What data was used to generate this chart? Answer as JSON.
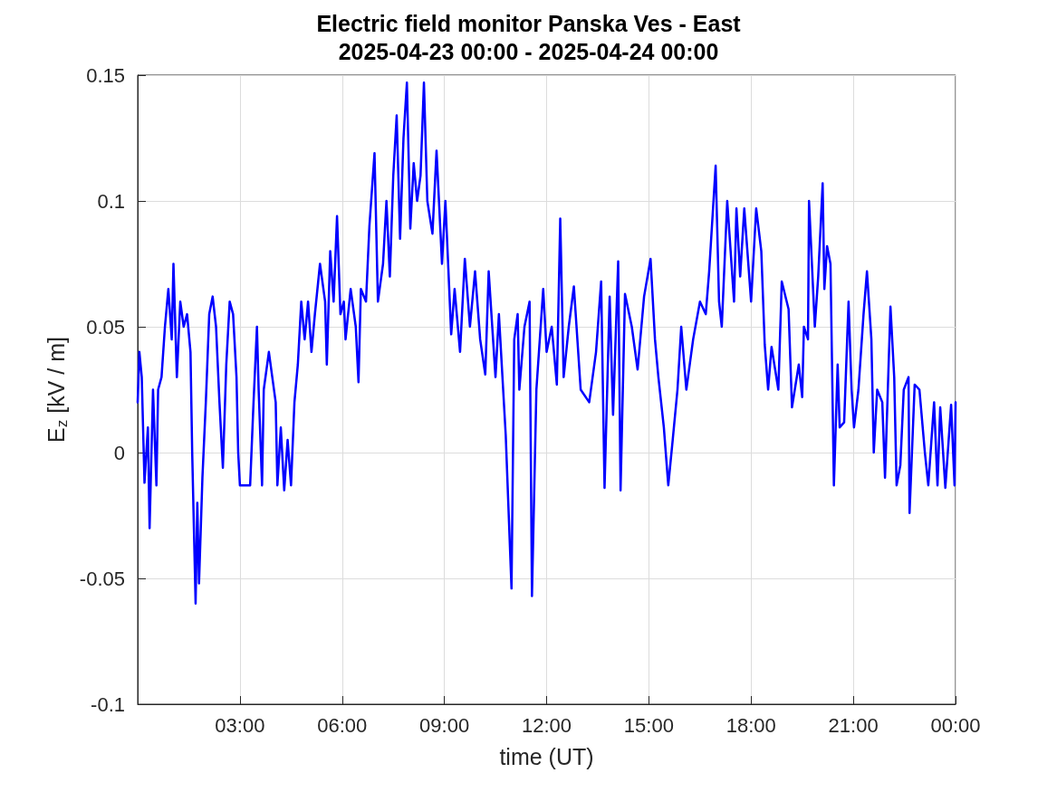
{
  "chart_data": {
    "type": "line",
    "title": "Electric field monitor Panska Ves - East",
    "subtitle": "2025-04-23 00:00 - 2025-04-24 00:00",
    "xlabel": "time (UT)",
    "ylabel": "E$_{z}$ [kV / m]",
    "xlim": [
      0,
      24
    ],
    "ylim": [
      -0.1,
      0.15
    ],
    "xticks": [
      {
        "value": 3,
        "label": "03:00"
      },
      {
        "value": 6,
        "label": "06:00"
      },
      {
        "value": 9,
        "label": "09:00"
      },
      {
        "value": 12,
        "label": "12:00"
      },
      {
        "value": 15,
        "label": "15:00"
      },
      {
        "value": 18,
        "label": "18:00"
      },
      {
        "value": 21,
        "label": "21:00"
      },
      {
        "value": 24,
        "label": "00:00"
      }
    ],
    "yticks": [
      -0.1,
      -0.05,
      0,
      0.05,
      0.1,
      0.15
    ],
    "grid": true,
    "marker": "none",
    "line_style": "solid",
    "series": [
      {
        "color": "#0000ff",
        "x": [
          0,
          0.05,
          0.12,
          0.2,
          0.3,
          0.35,
          0.45,
          0.55,
          0.6,
          0.7,
          0.8,
          0.9,
          1.0,
          1.05,
          1.15,
          1.25,
          1.35,
          1.45,
          1.55,
          1.6,
          1.65,
          1.7,
          1.75,
          1.8,
          1.9,
          2.0,
          2.1,
          2.2,
          2.3,
          2.4,
          2.5,
          2.6,
          2.7,
          2.8,
          2.9,
          2.95,
          3.0,
          3.3,
          3.4,
          3.5,
          3.55,
          3.65,
          3.7,
          3.85,
          3.95,
          4.05,
          4.1,
          4.2,
          4.3,
          4.4,
          4.5,
          4.6,
          4.7,
          4.8,
          4.9,
          5.0,
          5.1,
          5.2,
          5.35,
          5.5,
          5.55,
          5.65,
          5.75,
          5.85,
          5.95,
          6.05,
          6.1,
          6.25,
          6.4,
          6.48,
          6.55,
          6.7,
          6.8,
          6.95,
          7.05,
          7.2,
          7.3,
          7.4,
          7.5,
          7.6,
          7.7,
          7.8,
          7.9,
          8.0,
          8.1,
          8.2,
          8.3,
          8.4,
          8.5,
          8.65,
          8.77,
          8.93,
          9.03,
          9.2,
          9.3,
          9.46,
          9.6,
          9.75,
          9.9,
          10.05,
          10.2,
          10.3,
          10.5,
          10.6,
          10.8,
          10.97,
          11.05,
          11.15,
          11.2,
          11.35,
          11.5,
          11.57,
          11.7,
          11.9,
          12.0,
          12.15,
          12.3,
          12.4,
          12.5,
          12.65,
          12.8,
          13.0,
          13.25,
          13.45,
          13.6,
          13.7,
          13.85,
          13.95,
          14.1,
          14.17,
          14.3,
          14.5,
          14.67,
          14.86,
          15.05,
          15.18,
          15.28,
          15.44,
          15.57,
          15.7,
          15.84,
          15.95,
          16.1,
          16.3,
          16.5,
          16.67,
          16.77,
          16.96,
          17.06,
          17.14,
          17.3,
          17.5,
          17.57,
          17.68,
          17.8,
          18.0,
          18.15,
          18.3,
          18.4,
          18.5,
          18.6,
          18.8,
          18.9,
          19.1,
          19.2,
          19.4,
          19.5,
          19.55,
          19.67,
          19.7,
          19.87,
          19.97,
          20.1,
          20.15,
          20.23,
          20.33,
          20.43,
          20.54,
          20.6,
          20.73,
          20.86,
          20.95,
          21.02,
          21.15,
          21.3,
          21.4,
          21.53,
          21.6,
          21.7,
          21.85,
          21.93,
          22.09,
          22.2,
          22.27,
          22.38,
          22.48,
          22.62,
          22.65,
          22.8,
          22.94,
          23.1,
          23.2,
          23.37,
          23.47,
          23.55,
          23.7,
          23.87,
          23.97,
          24.0
        ],
        "values": [
          0.02,
          0.04,
          0.03,
          -0.012,
          0.01,
          -0.03,
          0.025,
          -0.013,
          0.025,
          0.03,
          0.05,
          0.065,
          0.045,
          0.075,
          0.03,
          0.06,
          0.05,
          0.055,
          0.04,
          0.0,
          -0.03,
          -0.06,
          -0.02,
          -0.052,
          -0.01,
          0.02,
          0.055,
          0.062,
          0.05,
          0.02,
          -0.006,
          0.035,
          0.06,
          0.055,
          0.03,
          0.0,
          -0.013,
          -0.013,
          0.02,
          0.05,
          0.025,
          -0.013,
          0.025,
          0.04,
          0.03,
          0.02,
          -0.013,
          0.01,
          -0.015,
          0.005,
          -0.013,
          0.02,
          0.035,
          0.06,
          0.045,
          0.06,
          0.04,
          0.055,
          0.075,
          0.06,
          0.035,
          0.08,
          0.06,
          0.094,
          0.055,
          0.06,
          0.045,
          0.065,
          0.05,
          0.028,
          0.065,
          0.06,
          0.09,
          0.119,
          0.06,
          0.075,
          0.1,
          0.07,
          0.11,
          0.134,
          0.085,
          0.125,
          0.147,
          0.089,
          0.115,
          0.1,
          0.11,
          0.147,
          0.1,
          0.087,
          0.12,
          0.075,
          0.1,
          0.047,
          0.065,
          0.04,
          0.077,
          0.05,
          0.072,
          0.045,
          0.031,
          0.072,
          0.03,
          0.055,
          0.007,
          -0.054,
          0.045,
          0.055,
          0.025,
          0.05,
          0.06,
          -0.057,
          0.025,
          0.065,
          0.04,
          0.05,
          0.027,
          0.093,
          0.03,
          0.05,
          0.066,
          0.025,
          0.02,
          0.04,
          0.068,
          -0.014,
          0.062,
          0.015,
          0.076,
          -0.015,
          0.063,
          0.05,
          0.033,
          0.062,
          0.077,
          0.045,
          0.03,
          0.01,
          -0.013,
          0.005,
          0.025,
          0.05,
          0.025,
          0.045,
          0.06,
          0.055,
          0.072,
          0.114,
          0.06,
          0.05,
          0.1,
          0.06,
          0.097,
          0.07,
          0.097,
          0.06,
          0.097,
          0.08,
          0.043,
          0.025,
          0.042,
          0.025,
          0.068,
          0.057,
          0.018,
          0.035,
          0.022,
          0.05,
          0.045,
          0.1,
          0.05,
          0.07,
          0.107,
          0.065,
          0.082,
          0.075,
          -0.013,
          0.035,
          0.01,
          0.012,
          0.06,
          0.025,
          0.01,
          0.025,
          0.055,
          0.072,
          0.045,
          0.0,
          0.025,
          0.02,
          -0.01,
          0.058,
          0.03,
          -0.013,
          -0.005,
          0.025,
          0.03,
          -0.024,
          0.027,
          0.025,
          0.0,
          -0.013,
          0.02,
          -0.013,
          0.018,
          -0.014,
          0.019,
          -0.013,
          0.02
        ]
      }
    ]
  }
}
